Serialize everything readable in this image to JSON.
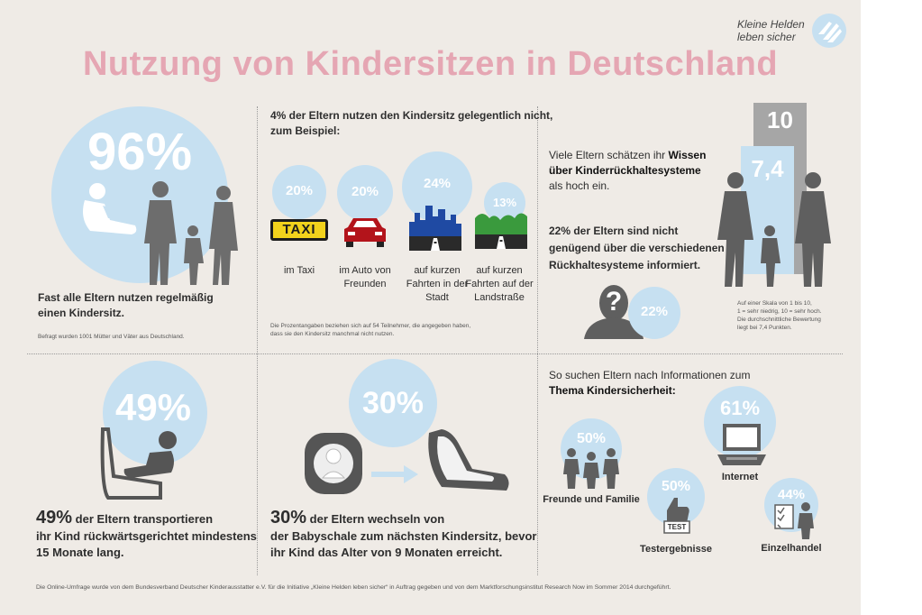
{
  "header": {
    "title": "Nutzung von Kindersitzen in Deutschland",
    "logo_line1": "Kleine Helden",
    "logo_line2": "leben sicher"
  },
  "colors": {
    "title": "#e5a6b3",
    "circle": "#c6e0f1",
    "silhouette": "#6d6d6d",
    "background": "#efebe6"
  },
  "panel1": {
    "percent": "96%",
    "text_line1": "Fast alle Eltern nutzen regelmäßig",
    "text_line2": "einen Kindersitz.",
    "note": "Befragt wurden 1001 Mütter und Väter aus Deutschland."
  },
  "panel2": {
    "heading_line1": "4% der Eltern nutzen den Kindersitz gelegentlich nicht,",
    "heading_line2": "zum Beispiel:",
    "items": [
      {
        "percent": "20%",
        "icon": "taxi-icon",
        "label_lines": [
          "im Taxi"
        ]
      },
      {
        "percent": "20%",
        "icon": "car-icon",
        "label_lines": [
          "im Auto von",
          "Freunden"
        ]
      },
      {
        "percent": "24%",
        "icon": "city-road-icon",
        "label_lines": [
          "auf kurzen",
          "Fahrten in der",
          "Stadt"
        ]
      },
      {
        "percent": "13%",
        "icon": "country-road-icon",
        "label_lines": [
          "auf kurzen",
          "Fahrten auf der",
          "Landstraße"
        ]
      }
    ],
    "taxi_sign": "TAXI",
    "note_line1": "Die Prozentangaben beziehen sich auf 54 Teilnehmer, die angegeben haben,",
    "note_line2": "dass sie den Kindersitz manchmal nicht nutzen."
  },
  "panel3": {
    "line1": "Viele Eltern schätzen ihr ",
    "line1_bold": "Wissen",
    "line2_bold": "über Kinderrückhaltesysteme",
    "line3": "als hoch ein.",
    "bar_max": "10",
    "bar_value": "7,4",
    "bar_value_fraction": 0.74,
    "text2_line1": "22% der Eltern sind nicht",
    "text2_line2": "genügend über die verschiedenen",
    "text2_line3": "Rückhaltesysteme informiert.",
    "percent": "22%",
    "question_mark": "?",
    "note_line1": "Auf einer Skala von 1 bis 10,",
    "note_line2": "1 = sehr niedrig, 10 = sehr hoch.",
    "note_line3": "Die durchschnittliche Bewertung",
    "note_line4": "liegt bei 7,4 Punkten."
  },
  "panel4": {
    "percent": "49%",
    "bold": "49%",
    "line1": " der Eltern transportieren",
    "line2": "ihr Kind rückwärtsgerichtet mindestens",
    "line3": "15 Monate lang."
  },
  "panel5": {
    "percent": "30%",
    "bold": "30%",
    "line1": " der Eltern wechseln von",
    "line2": "der Babyschale zum nächsten Kindersitz, bevor",
    "line3": "ihr Kind das Alter von 9 Monaten erreicht."
  },
  "panel6": {
    "heading_line1": "So suchen Eltern nach Informationen zum",
    "heading_line2": "Thema Kindersicherheit:",
    "sources": [
      {
        "percent": "50%",
        "label": "Freunde und Familie",
        "icon": "family-icon"
      },
      {
        "percent": "61%",
        "label": "Internet",
        "icon": "laptop-icon"
      },
      {
        "percent": "50%",
        "label": "Testergebnisse",
        "icon": "thumbs-up-test-icon"
      },
      {
        "percent": "44%",
        "label": "Einzelhandel",
        "icon": "checklist-person-icon"
      }
    ],
    "test_label": "TEST"
  },
  "footer": {
    "text": "Die Online-Umfrage wurde von dem Bundesverband Deutscher Kinderausstatter e.V. für die Initiative „Kleine Helden leben sicher“ in Auftrag gegeben und von dem Marktforschungsinstitut Research Now im Sommer 2014 durchgeführt."
  }
}
